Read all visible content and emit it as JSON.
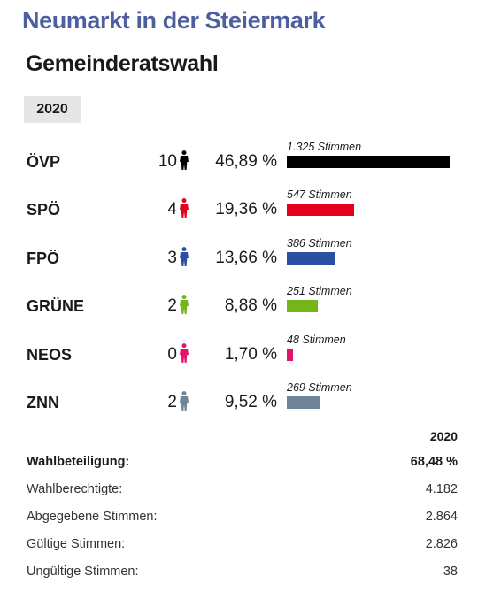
{
  "header": {
    "place": "Neumarkt in der Steiermark",
    "election": "Gemeinderatswahl",
    "year_tab": "2020"
  },
  "parties": [
    {
      "name": "ÖVP",
      "seats": "10",
      "percent": "46,89 %",
      "votes": "1.325 Stimmen",
      "share": 1.0,
      "color": "#000000"
    },
    {
      "name": "SPÖ",
      "seats": "4",
      "percent": "19,36 %",
      "votes": "547 Stimmen",
      "share": 0.4128,
      "color": "#e3001b"
    },
    {
      "name": "FPÖ",
      "seats": "3",
      "percent": "13,66 %",
      "votes": "386 Stimmen",
      "share": 0.2913,
      "color": "#2b50a2"
    },
    {
      "name": "GRÜNE",
      "seats": "2",
      "percent": "8,88 %",
      "votes": "251 Stimmen",
      "share": 0.1894,
      "color": "#74b51a"
    },
    {
      "name": "NEOS",
      "seats": "0",
      "percent": "1,70 %",
      "votes": "48 Stimmen",
      "share": 0.0362,
      "color": "#e3136a"
    },
    {
      "name": "ZNN",
      "seats": "2",
      "percent": "9,52 %",
      "votes": "269 Stimmen",
      "share": 0.203,
      "color": "#6f8496"
    }
  ],
  "icons": {
    "seat": "person-icon"
  },
  "stats": {
    "year": "2020",
    "rows": [
      {
        "label": "Wahlbeteiligung:",
        "value": "68,48 %",
        "bold": true
      },
      {
        "label": "Wahlberechtigte:",
        "value": "4.182",
        "bold": false
      },
      {
        "label": "Abgegebene Stimmen:",
        "value": "2.864",
        "bold": false
      },
      {
        "label": "Gültige Stimmen:",
        "value": "2.826",
        "bold": false
      },
      {
        "label": "Ungültige Stimmen:",
        "value": "38",
        "bold": false
      }
    ]
  }
}
